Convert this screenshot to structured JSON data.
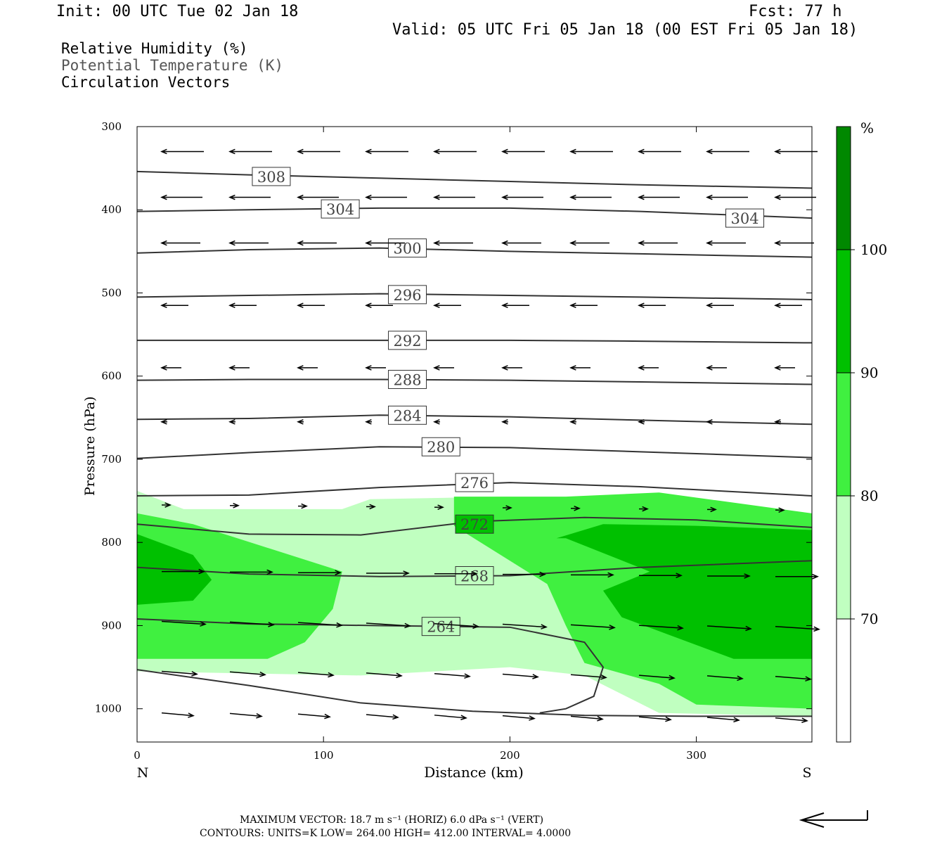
{
  "header": {
    "init": "Init: 00 UTC Tue 02 Jan 18",
    "fcst": "Fcst:   77 h",
    "valid": "Valid: 05 UTC Fri 05 Jan 18 (00 EST Fri 05 Jan 18)"
  },
  "fields": [
    "Relative Humidity (%)",
    "Potential Temperature (K)",
    "Circulation Vectors"
  ],
  "footer": {
    "max_vector": "MAXIMUM VECTOR:  18.7 m s⁻¹ (HORIZ)          6.0 dPa s⁻¹ (VERT)",
    "contours": "CONTOURS:  UNITS=K  LOW=   264.00          HIGH=  412.00          INTERVAL=    4.0000"
  },
  "chart_data": {
    "type": "cross-section",
    "xlabel": "Distance (km)",
    "ylabel": "Pressure (hPa)",
    "x_ticks": [
      0,
      100,
      200,
      300
    ],
    "xlim": [
      0,
      362
    ],
    "y_ticks": [
      300,
      400,
      500,
      600,
      700,
      800,
      900,
      1000
    ],
    "ylim": [
      300,
      1040
    ],
    "y_inverted": true,
    "end_labels": {
      "left": "N",
      "right": "S"
    },
    "colorbar": {
      "unit": "%",
      "levels": [
        70,
        80,
        90,
        100
      ],
      "colors": [
        "#ffffff",
        "#c0ffc0",
        "#40f040",
        "#00c000",
        "#008800"
      ]
    },
    "colors": {
      "rh_70_80": "#c0ffc0",
      "rh_80_90": "#40f040",
      "rh_90_100": "#00c000",
      "rh_100": "#008800",
      "theta": "#333333"
    },
    "theta_contours": [
      {
        "label": "308",
        "x": [
          0,
          60,
          130,
          200,
          270,
          362
        ],
        "p": [
          354,
          358,
          362,
          366,
          370,
          374
        ],
        "label_at": [
          72,
          360
        ]
      },
      {
        "label": "304",
        "x": [
          0,
          60,
          130,
          200,
          270,
          362
        ],
        "p": [
          402,
          400,
          398,
          398,
          402,
          410
        ],
        "label_at": [
          109,
          399
        ]
      },
      {
        "label": "304",
        "x": [],
        "p": [],
        "label_at": [
          326,
          410
        ]
      },
      {
        "label": "300",
        "x": [
          0,
          60,
          130,
          200,
          270,
          362
        ],
        "p": [
          452,
          448,
          446,
          450,
          453,
          457
        ],
        "label_at": [
          145,
          446
        ]
      },
      {
        "label": "296",
        "x": [
          0,
          60,
          130,
          200,
          270,
          362
        ],
        "p": [
          505,
          503,
          501,
          503,
          505,
          508
        ],
        "label_at": [
          145,
          502
        ]
      },
      {
        "label": "292",
        "x": [
          0,
          60,
          130,
          200,
          270,
          362
        ],
        "p": [
          557,
          557,
          557,
          557,
          558,
          560
        ],
        "label_at": [
          145,
          557
        ]
      },
      {
        "label": "288",
        "x": [
          0,
          60,
          130,
          200,
          270,
          362
        ],
        "p": [
          605,
          604,
          604,
          605,
          607,
          610
        ],
        "label_at": [
          145,
          604
        ]
      },
      {
        "label": "284",
        "x": [
          0,
          60,
          130,
          200,
          270,
          362
        ],
        "p": [
          652,
          651,
          647,
          649,
          653,
          658
        ],
        "label_at": [
          145,
          647
        ]
      },
      {
        "label": "280",
        "x": [
          0,
          60,
          130,
          200,
          270,
          362
        ],
        "p": [
          699,
          692,
          685,
          686,
          691,
          698
        ],
        "label_at": [
          163,
          685
        ]
      },
      {
        "label": "276",
        "x": [
          0,
          60,
          130,
          200,
          270,
          362
        ],
        "p": [
          744,
          743,
          734,
          728,
          733,
          744
        ],
        "label_at": [
          181,
          728
        ]
      },
      {
        "label": "272",
        "x": [
          0,
          60,
          120,
          180,
          240,
          300,
          362
        ],
        "p": [
          778,
          790,
          791,
          775,
          770,
          773,
          782
        ],
        "label_at": [
          181,
          778
        ]
      },
      {
        "label": "268",
        "x": [
          0,
          60,
          130,
          200,
          270,
          362
        ],
        "p": [
          830,
          838,
          841,
          840,
          830,
          822
        ],
        "label_at": [
          181,
          840
        ]
      },
      {
        "label": "264",
        "x": [
          0,
          60,
          130,
          200,
          240,
          250,
          245,
          230,
          216
        ],
        "p": [
          892,
          898,
          900,
          902,
          920,
          950,
          985,
          1000,
          1005
        ],
        "label_at": [
          163,
          901
        ]
      },
      {
        "label": "",
        "x": [
          0,
          60,
          120,
          180,
          240,
          300,
          362
        ],
        "p": [
          953,
          972,
          993,
          1003,
          1008,
          1009,
          1009
        ],
        "label_at": []
      }
    ],
    "rh_regions": [
      {
        "level": 70,
        "x": [
          0,
          25,
          110,
          125,
          200,
          260,
          362,
          362,
          280,
          240,
          200,
          120,
          0
        ],
        "p": [
          738,
          760,
          760,
          748,
          745,
          760,
          768,
          1009,
          1005,
          960,
          950,
          960,
          955
        ]
      },
      {
        "level": 80,
        "x": [
          0,
          30,
          110,
          105,
          90,
          70,
          0
        ],
        "p": [
          765,
          778,
          835,
          880,
          920,
          940,
          940
        ]
      },
      {
        "level": 80,
        "x": [
          170,
          230,
          280,
          362,
          362,
          300,
          280,
          240,
          230,
          220,
          170
        ],
        "p": [
          745,
          745,
          740,
          765,
          1000,
          995,
          970,
          945,
          900,
          850,
          780
        ]
      },
      {
        "level": 90,
        "x": [
          0,
          30,
          40,
          30,
          0
        ],
        "p": [
          790,
          815,
          845,
          870,
          875
        ]
      },
      {
        "level": 90,
        "x": [
          225,
          250,
          300,
          362,
          362,
          320,
          260,
          250,
          275,
          230
        ],
        "p": [
          795,
          778,
          780,
          785,
          940,
          940,
          890,
          858,
          835,
          795
        ]
      }
    ],
    "max_vector": {
      "horiz": 18.7,
      "vert": 6.0,
      "horiz_unit": "m s-1",
      "vert_unit": "dPa s-1"
    }
  }
}
